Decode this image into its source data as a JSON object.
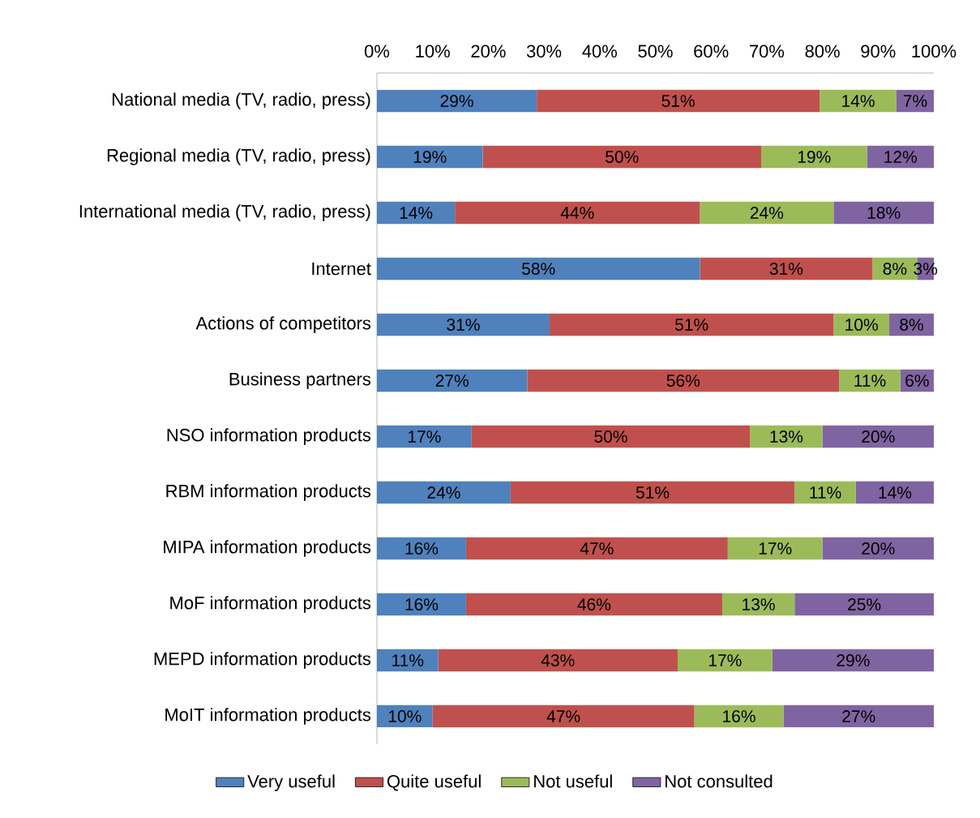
{
  "chart_data": {
    "type": "bar",
    "orientation": "horizontal",
    "stacked": true,
    "legend": "bottom",
    "categories": [
      "National media (TV, radio, press)",
      "Regional media (TV, radio, press)",
      "International media (TV, radio, press)",
      "Internet",
      "Actions of competitors",
      "Business partners",
      "NSO information products",
      "RBM information products",
      "MIPA information products",
      "MoF information products",
      "MEPD information products",
      "MoIT information products"
    ],
    "xlim": [
      0,
      100
    ],
    "xticks": [
      {
        "value": 0,
        "label": "0%"
      },
      {
        "value": 10,
        "label": "10%"
      },
      {
        "value": 20,
        "label": "20%"
      },
      {
        "value": 30,
        "label": "30%"
      },
      {
        "value": 40,
        "label": "40%"
      },
      {
        "value": 50,
        "label": "50%"
      },
      {
        "value": 60,
        "label": "60%"
      },
      {
        "value": 70,
        "label": "70%"
      },
      {
        "value": 80,
        "label": "80%"
      },
      {
        "value": 90,
        "label": "90%"
      },
      {
        "value": 100,
        "label": "100%"
      }
    ],
    "series": [
      {
        "name": "Very useful",
        "color": "#4f81bd",
        "values": [
          28.7,
          19,
          14,
          58,
          31,
          27,
          17,
          24,
          16,
          16,
          11,
          10
        ],
        "value_labels": [
          "29%",
          "19%",
          "14%",
          "58%",
          "31%",
          "27%",
          "17%",
          "24%",
          "16%",
          "16%",
          "11%",
          "10%"
        ]
      },
      {
        "name": "Quite useful",
        "color": "#c0504d",
        "values": [
          50.8,
          50,
          44,
          31,
          51,
          56,
          50,
          51,
          47,
          46,
          43,
          47
        ],
        "value_labels": [
          "51%",
          "50%",
          "44%",
          "31%",
          "51%",
          "56%",
          "50%",
          "51%",
          "47%",
          "46%",
          "43%",
          "47%"
        ]
      },
      {
        "name": "Not useful",
        "color": "#9bbb59",
        "values": [
          13.8,
          19,
          24,
          8,
          10,
          11,
          13,
          11,
          17,
          13,
          17,
          16
        ],
        "value_labels": [
          "14%",
          "19%",
          "24%",
          "8%",
          "10%",
          "11%",
          "13%",
          "11%",
          "17%",
          "13%",
          "17%",
          "16%"
        ]
      },
      {
        "name": "Not consulted",
        "color": "#8064a2",
        "values": [
          6.7,
          12,
          18,
          3,
          8,
          6,
          20,
          14,
          20,
          25,
          29,
          27
        ],
        "value_labels": [
          "7%",
          "12%",
          "18%",
          "3%",
          "8%",
          "6%",
          "20%",
          "14%",
          "20%",
          "25%",
          "29%",
          "27%"
        ]
      }
    ]
  }
}
